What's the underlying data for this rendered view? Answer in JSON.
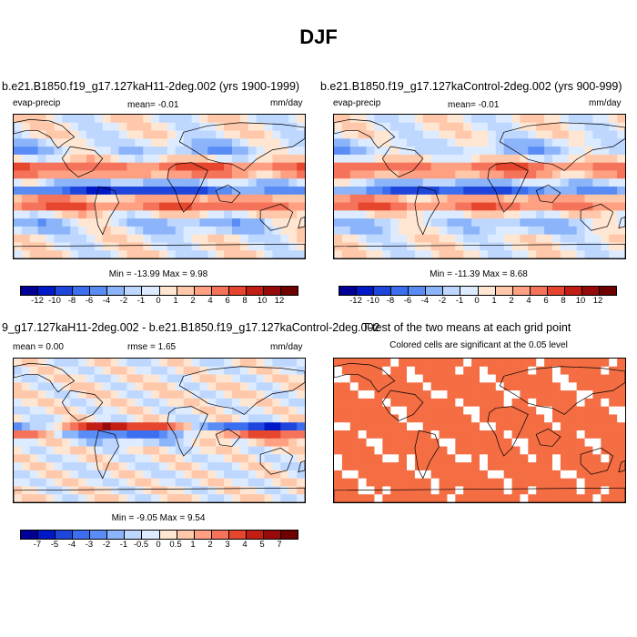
{
  "figure": {
    "title": "DJF"
  },
  "panels": [
    {
      "title": "b.e21.B1850.f19_g17.127kaH11-2deg.002 (yrs 1900-1999)",
      "left_label": "evap-precip",
      "center_label": "mean=  -0.01",
      "right_label": "mm/day",
      "minmax": "Min = -13.99 Max =   9.98",
      "field": "absolute"
    },
    {
      "title": "b.e21.B1850.f19_g17.127kaControl-2deg.002 (yrs 900-999)",
      "left_label": "evap-precip",
      "center_label": "mean=  -0.01",
      "right_label": "mm/day",
      "minmax": "Min = -11.39 Max =   8.68",
      "field": "absolute"
    },
    {
      "title": "9_g17.127kaH11-2deg.002 - b.e21.B1850.f19_g17.127kaControl-2deg.002",
      "left_label": "mean =  0.00",
      "center_label": "rmse =   1.65",
      "right_label": "mm/day",
      "minmax": "Min =  -9.05 Max =   9.54",
      "field": "difference"
    },
    {
      "title": "T-test of the two means at each grid point",
      "subtitle": "Colored cells are significant at the 0.05 level",
      "field": "significance",
      "significance_color": "#f46d43"
    }
  ],
  "colorbars": {
    "absolute": {
      "labels": [
        "-12",
        "-10",
        "-8",
        "-6",
        "-4",
        "-2",
        "-1",
        "0",
        "1",
        "2",
        "4",
        "6",
        "8",
        "10",
        "12"
      ],
      "colors": [
        "#000096",
        "#0019c8",
        "#1e46dc",
        "#3c6ef0",
        "#5a8cf5",
        "#8cb4fa",
        "#bed7ff",
        "#dcebff",
        "#ffe6d2",
        "#ffc8aa",
        "#ffa082",
        "#f5735a",
        "#e6462d",
        "#c31e14",
        "#960a0a",
        "#6e0000"
      ]
    },
    "difference": {
      "labels": [
        "-7",
        "-5",
        "-4",
        "-3",
        "-2",
        "-1",
        "-0.5",
        "0",
        "0.5",
        "1",
        "2",
        "3",
        "4",
        "5",
        "7"
      ],
      "colors": [
        "#000096",
        "#0019c8",
        "#1e46dc",
        "#3c6ef0",
        "#5a8cf5",
        "#8cb4fa",
        "#bed7ff",
        "#dcebff",
        "#ffe6d2",
        "#ffc8aa",
        "#ffa082",
        "#f5735a",
        "#e6462d",
        "#c31e14",
        "#960a0a",
        "#6e0000"
      ]
    }
  }
}
